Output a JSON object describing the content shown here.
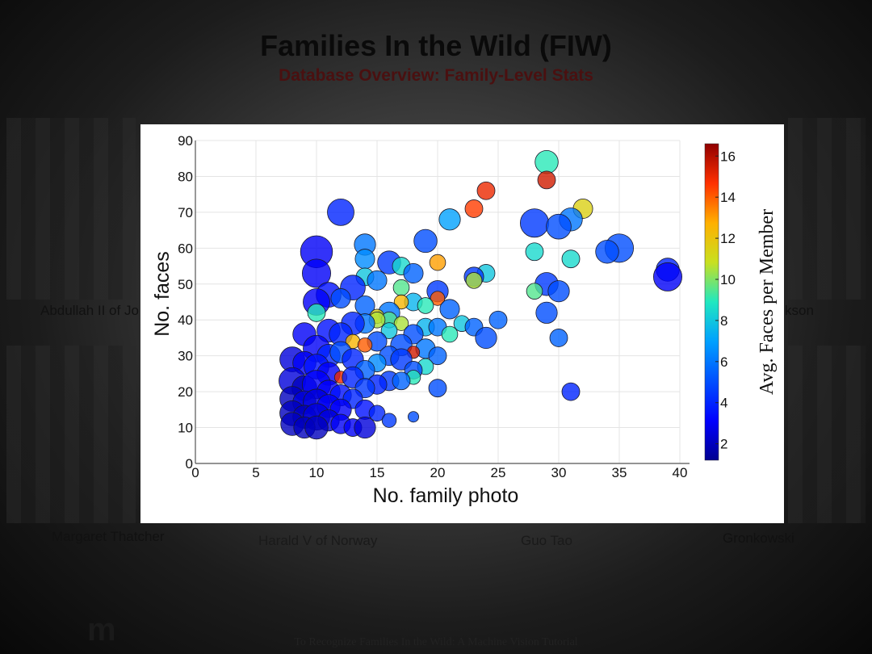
{
  "slide": {
    "title": "Families In the Wild (FIW)",
    "subtitle": "Database Overview: Family-Level Stats",
    "footer": "To Recognize Families In the Wild: A Machine Vision Tutorial",
    "logo": "m"
  },
  "captions": {
    "left_top": "Abdullah II of Jo",
    "right_top": "kson",
    "bottom_1": "Margaret Thatcher",
    "bottom_2": "Harald V of Norway",
    "bottom_3": "Guo Tao",
    "bottom_4": "Gronkowski"
  },
  "chart_data": {
    "type": "scatter",
    "xlabel": "No. family photo",
    "ylabel": "No. faces",
    "xlim": [
      0,
      40
    ],
    "ylim": [
      0,
      90
    ],
    "xticks": [
      0,
      5,
      10,
      15,
      20,
      25,
      30,
      35,
      40
    ],
    "yticks": [
      0,
      10,
      20,
      30,
      40,
      50,
      60,
      70,
      80,
      90
    ],
    "grid": true,
    "colorbar": {
      "label": "Avg. Faces per Member",
      "range": [
        1.2,
        16.6
      ],
      "ticks": [
        2,
        4,
        6,
        8,
        10,
        12,
        14,
        16
      ]
    },
    "points": [
      {
        "x": 29,
        "y": 84,
        "c": 9.0,
        "s": 1.3
      },
      {
        "x": 29,
        "y": 79,
        "c": 15.5,
        "s": 1.0
      },
      {
        "x": 24,
        "y": 76,
        "c": 15.0,
        "s": 1.0
      },
      {
        "x": 23,
        "y": 71,
        "c": 14.5,
        "s": 1.0
      },
      {
        "x": 32,
        "y": 71,
        "c": 11.5,
        "s": 1.1
      },
      {
        "x": 12,
        "y": 70,
        "c": 4.0,
        "s": 1.5
      },
      {
        "x": 21,
        "y": 68,
        "c": 7.0,
        "s": 1.2
      },
      {
        "x": 31,
        "y": 68,
        "c": 6.0,
        "s": 1.3
      },
      {
        "x": 28,
        "y": 67,
        "c": 4.5,
        "s": 1.6
      },
      {
        "x": 30,
        "y": 66,
        "c": 5.0,
        "s": 1.4
      },
      {
        "x": 19,
        "y": 62,
        "c": 5.0,
        "s": 1.3
      },
      {
        "x": 14,
        "y": 61,
        "c": 6.0,
        "s": 1.2
      },
      {
        "x": 35,
        "y": 60,
        "c": 5.0,
        "s": 1.6
      },
      {
        "x": 34,
        "y": 59,
        "c": 5.0,
        "s": 1.3
      },
      {
        "x": 28,
        "y": 59,
        "c": 8.5,
        "s": 1.0
      },
      {
        "x": 10,
        "y": 59,
        "c": 3.0,
        "s": 1.8
      },
      {
        "x": 31,
        "y": 57,
        "c": 8.5,
        "s": 1.0
      },
      {
        "x": 14,
        "y": 57,
        "c": 6.5,
        "s": 1.1
      },
      {
        "x": 16,
        "y": 56,
        "c": 4.5,
        "s": 1.3
      },
      {
        "x": 20,
        "y": 56,
        "c": 13.0,
        "s": 0.9
      },
      {
        "x": 17,
        "y": 55,
        "c": 8.5,
        "s": 1.0
      },
      {
        "x": 39,
        "y": 54,
        "c": 4.0,
        "s": 1.3
      },
      {
        "x": 10,
        "y": 53,
        "c": 3.0,
        "s": 1.6
      },
      {
        "x": 18,
        "y": 53,
        "c": 5.5,
        "s": 1.1
      },
      {
        "x": 24,
        "y": 53,
        "c": 8.0,
        "s": 1.0
      },
      {
        "x": 23,
        "y": 52,
        "c": 4.5,
        "s": 1.1
      },
      {
        "x": 14,
        "y": 52,
        "c": 8.0,
        "s": 1.0
      },
      {
        "x": 39,
        "y": 52,
        "c": 3.0,
        "s": 1.6
      },
      {
        "x": 15,
        "y": 51,
        "c": 6.0,
        "s": 1.1
      },
      {
        "x": 23,
        "y": 51,
        "c": 10.5,
        "s": 0.9
      },
      {
        "x": 13,
        "y": 49,
        "c": 4.0,
        "s": 1.4
      },
      {
        "x": 29,
        "y": 50,
        "c": 4.5,
        "s": 1.3
      },
      {
        "x": 17,
        "y": 49,
        "c": 9.5,
        "s": 0.9
      },
      {
        "x": 20,
        "y": 48,
        "c": 4.5,
        "s": 1.2
      },
      {
        "x": 28,
        "y": 48,
        "c": 9.5,
        "s": 0.9
      },
      {
        "x": 30,
        "y": 48,
        "c": 5.0,
        "s": 1.2
      },
      {
        "x": 11,
        "y": 47,
        "c": 3.5,
        "s": 1.4
      },
      {
        "x": 12,
        "y": 46,
        "c": 5.0,
        "s": 1.1
      },
      {
        "x": 20,
        "y": 46,
        "c": 14.0,
        "s": 0.8
      },
      {
        "x": 18,
        "y": 45,
        "c": 7.5,
        "s": 1.0
      },
      {
        "x": 17,
        "y": 45,
        "c": 12.5,
        "s": 0.8
      },
      {
        "x": 10,
        "y": 45,
        "c": 3.0,
        "s": 1.5
      },
      {
        "x": 14,
        "y": 44,
        "c": 5.5,
        "s": 1.1
      },
      {
        "x": 19,
        "y": 44,
        "c": 9.0,
        "s": 0.9
      },
      {
        "x": 21,
        "y": 43,
        "c": 5.5,
        "s": 1.1
      },
      {
        "x": 29,
        "y": 42,
        "c": 5.0,
        "s": 1.2
      },
      {
        "x": 10,
        "y": 42,
        "c": 9.0,
        "s": 1.0
      },
      {
        "x": 16,
        "y": 42,
        "c": 6.0,
        "s": 1.2
      },
      {
        "x": 15,
        "y": 41,
        "c": 11.5,
        "s": 0.8
      },
      {
        "x": 16,
        "y": 40,
        "c": 9.5,
        "s": 0.9
      },
      {
        "x": 25,
        "y": 40,
        "c": 5.5,
        "s": 1.0
      },
      {
        "x": 15,
        "y": 40,
        "c": 10.5,
        "s": 0.9
      },
      {
        "x": 17,
        "y": 39,
        "c": 10.5,
        "s": 0.8
      },
      {
        "x": 22,
        "y": 39,
        "c": 8.0,
        "s": 0.9
      },
      {
        "x": 14,
        "y": 39,
        "c": 6.0,
        "s": 1.1
      },
      {
        "x": 13,
        "y": 39,
        "c": 4.0,
        "s": 1.3
      },
      {
        "x": 19,
        "y": 38,
        "c": 7.5,
        "s": 1.0
      },
      {
        "x": 20,
        "y": 38,
        "c": 6.0,
        "s": 1.0
      },
      {
        "x": 23,
        "y": 38,
        "c": 5.5,
        "s": 1.0
      },
      {
        "x": 16,
        "y": 37,
        "c": 8.0,
        "s": 0.9
      },
      {
        "x": 18,
        "y": 36,
        "c": 5.0,
        "s": 1.1
      },
      {
        "x": 21,
        "y": 36,
        "c": 9.0,
        "s": 0.9
      },
      {
        "x": 11,
        "y": 37,
        "c": 3.5,
        "s": 1.3
      },
      {
        "x": 12,
        "y": 36,
        "c": 4.0,
        "s": 1.3
      },
      {
        "x": 9,
        "y": 36,
        "c": 3.0,
        "s": 1.3
      },
      {
        "x": 24,
        "y": 35,
        "c": 5.0,
        "s": 1.2
      },
      {
        "x": 30,
        "y": 35,
        "c": 5.5,
        "s": 1.0
      },
      {
        "x": 13,
        "y": 34,
        "c": 12.5,
        "s": 0.8
      },
      {
        "x": 15,
        "y": 34,
        "c": 5.0,
        "s": 1.1
      },
      {
        "x": 14,
        "y": 33,
        "c": 14.0,
        "s": 0.8
      },
      {
        "x": 17,
        "y": 33,
        "c": 5.0,
        "s": 1.2
      },
      {
        "x": 19,
        "y": 32,
        "c": 6.0,
        "s": 1.1
      },
      {
        "x": 18,
        "y": 31,
        "c": 15.5,
        "s": 0.7
      },
      {
        "x": 20,
        "y": 30,
        "c": 5.5,
        "s": 1.0
      },
      {
        "x": 10,
        "y": 32,
        "c": 3.0,
        "s": 1.5
      },
      {
        "x": 11,
        "y": 30,
        "c": 4.0,
        "s": 1.3
      },
      {
        "x": 12,
        "y": 31,
        "c": 5.0,
        "s": 1.2
      },
      {
        "x": 16,
        "y": 30,
        "c": 5.0,
        "s": 1.1
      },
      {
        "x": 17,
        "y": 29,
        "c": 4.5,
        "s": 1.2
      },
      {
        "x": 13,
        "y": 29,
        "c": 4.0,
        "s": 1.2
      },
      {
        "x": 8,
        "y": 29,
        "c": 2.5,
        "s": 1.4
      },
      {
        "x": 9,
        "y": 28,
        "c": 3.0,
        "s": 1.3
      },
      {
        "x": 15,
        "y": 28,
        "c": 6.5,
        "s": 1.0
      },
      {
        "x": 19,
        "y": 27,
        "c": 8.5,
        "s": 0.9
      },
      {
        "x": 18,
        "y": 26,
        "c": 5.0,
        "s": 1.0
      },
      {
        "x": 14,
        "y": 26,
        "c": 5.5,
        "s": 1.1
      },
      {
        "x": 10,
        "y": 27,
        "c": 3.5,
        "s": 1.4
      },
      {
        "x": 11,
        "y": 25,
        "c": 3.0,
        "s": 1.3
      },
      {
        "x": 12,
        "y": 24,
        "c": 15.0,
        "s": 0.7
      },
      {
        "x": 13,
        "y": 24,
        "c": 4.0,
        "s": 1.2
      },
      {
        "x": 18,
        "y": 24,
        "c": 9.0,
        "s": 0.8
      },
      {
        "x": 16,
        "y": 23,
        "c": 4.5,
        "s": 1.1
      },
      {
        "x": 17,
        "y": 23,
        "c": 5.5,
        "s": 1.0
      },
      {
        "x": 15,
        "y": 22,
        "c": 4.0,
        "s": 1.1
      },
      {
        "x": 8,
        "y": 23,
        "c": 2.5,
        "s": 1.5
      },
      {
        "x": 9,
        "y": 21,
        "c": 2.0,
        "s": 1.4
      },
      {
        "x": 10,
        "y": 22,
        "c": 3.0,
        "s": 1.6
      },
      {
        "x": 14,
        "y": 21,
        "c": 4.5,
        "s": 1.1
      },
      {
        "x": 20,
        "y": 21,
        "c": 5.0,
        "s": 1.0
      },
      {
        "x": 31,
        "y": 20,
        "c": 4.0,
        "s": 1.0
      },
      {
        "x": 11,
        "y": 20,
        "c": 3.0,
        "s": 1.3
      },
      {
        "x": 12,
        "y": 19,
        "c": 3.5,
        "s": 1.2
      },
      {
        "x": 13,
        "y": 18,
        "c": 4.0,
        "s": 1.1
      },
      {
        "x": 8,
        "y": 18,
        "c": 2.0,
        "s": 1.4
      },
      {
        "x": 9,
        "y": 17,
        "c": 2.5,
        "s": 1.3
      },
      {
        "x": 10,
        "y": 17,
        "c": 2.5,
        "s": 1.5
      },
      {
        "x": 11,
        "y": 16,
        "c": 3.0,
        "s": 1.3
      },
      {
        "x": 12,
        "y": 15,
        "c": 3.0,
        "s": 1.2
      },
      {
        "x": 14,
        "y": 15,
        "c": 3.5,
        "s": 1.1
      },
      {
        "x": 8,
        "y": 14,
        "c": 2.0,
        "s": 1.4
      },
      {
        "x": 9,
        "y": 13,
        "c": 2.0,
        "s": 1.3
      },
      {
        "x": 10,
        "y": 13,
        "c": 2.5,
        "s": 1.5
      },
      {
        "x": 15,
        "y": 14,
        "c": 4.0,
        "s": 0.9
      },
      {
        "x": 16,
        "y": 12,
        "c": 4.5,
        "s": 0.8
      },
      {
        "x": 18,
        "y": 13,
        "c": 5.0,
        "s": 0.6
      },
      {
        "x": 11,
        "y": 12,
        "c": 2.5,
        "s": 1.2
      },
      {
        "x": 12,
        "y": 11,
        "c": 3.0,
        "s": 1.1
      },
      {
        "x": 13,
        "y": 10,
        "c": 3.0,
        "s": 1.0
      },
      {
        "x": 14,
        "y": 10,
        "c": 2.5,
        "s": 1.2
      },
      {
        "x": 8,
        "y": 11,
        "c": 2.0,
        "s": 1.3
      },
      {
        "x": 9,
        "y": 10,
        "c": 2.0,
        "s": 1.2
      },
      {
        "x": 10,
        "y": 10,
        "c": 2.0,
        "s": 1.3
      }
    ]
  }
}
